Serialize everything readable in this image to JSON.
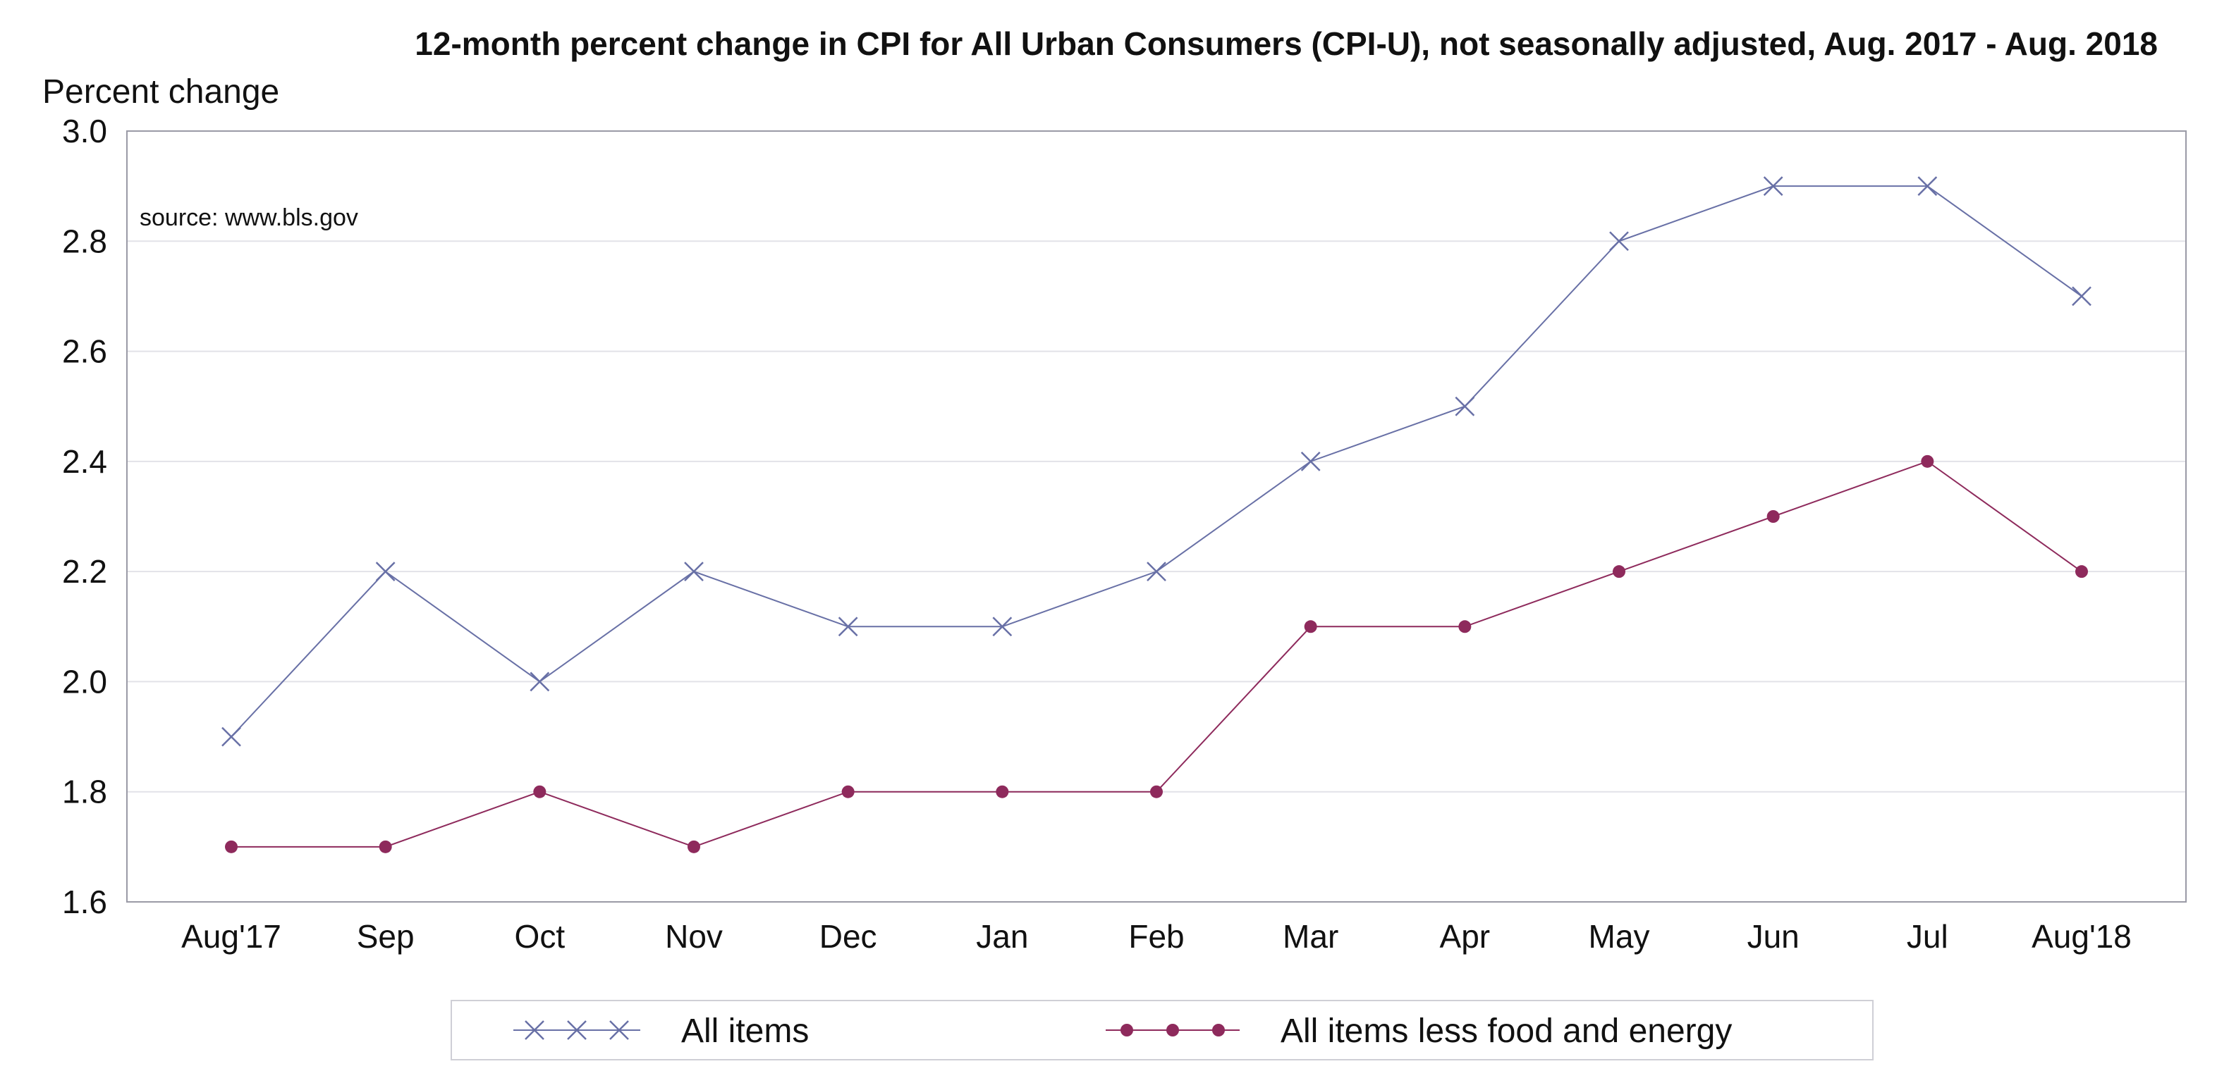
{
  "chart_data": {
    "type": "line",
    "title": "12-month percent change in CPI for All Urban Consumers (CPI-U), not seasonally adjusted, Aug. 2017 - Aug. 2018",
    "ylabel": "Percent change",
    "xlabel": "",
    "annotation": "source: www.bls.gov",
    "categories": [
      "Aug'17",
      "Sep",
      "Oct",
      "Nov",
      "Dec",
      "Jan",
      "Feb",
      "Mar",
      "Apr",
      "May",
      "Jun",
      "Jul",
      "Aug'18"
    ],
    "ylim": [
      1.6,
      3.0
    ],
    "yticks": [
      "1.6",
      "1.8",
      "2.0",
      "2.2",
      "2.4",
      "2.6",
      "2.8",
      "3.0"
    ],
    "grid": true,
    "legend_position": "bottom",
    "series": [
      {
        "name": "All items",
        "marker": "x",
        "color": "#6870a6",
        "values": [
          1.9,
          2.2,
          2.0,
          2.2,
          2.1,
          2.1,
          2.2,
          2.4,
          2.5,
          2.8,
          2.9,
          2.9,
          2.7
        ]
      },
      {
        "name": "All items less food and energy",
        "marker": "dot",
        "color": "#8e2a5c",
        "values": [
          1.7,
          1.7,
          1.8,
          1.7,
          1.8,
          1.8,
          1.8,
          2.1,
          2.1,
          2.2,
          2.3,
          2.4,
          2.2
        ]
      }
    ]
  }
}
